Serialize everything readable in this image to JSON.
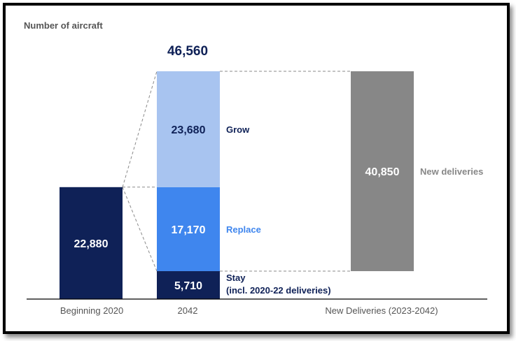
{
  "colors": {
    "navy": "#0f2157",
    "light_blue": "#a8c4f0",
    "mid_blue": "#3f86ee",
    "gray": "#878787",
    "axis": "#000000",
    "connector": "#8a8a8a"
  },
  "chart_data": {
    "type": "bar",
    "stacked": true,
    "title": "Number of aircraft",
    "xlabel": "",
    "ylabel": "",
    "grid": false,
    "legend": "none",
    "ylim": [
      0,
      46560
    ],
    "categories": [
      "Beginning 2020",
      "2042",
      "New Deliveries (2023-2042)"
    ],
    "total_label": "46,560",
    "series": [
      {
        "name": "",
        "category": "Beginning 2020",
        "value": 22880,
        "value_label": "22,880",
        "label": "",
        "color": "#0f2157",
        "label_color": "#ffffff"
      },
      {
        "name": "Stay",
        "category": "2042",
        "value": 5710,
        "value_label": "5,710",
        "label": "Stay",
        "label_line2": "(incl. 2020-22 deliveries)",
        "color": "#0f2157",
        "label_color": "#ffffff",
        "side_label_color": "#0f2157"
      },
      {
        "name": "Replace",
        "category": "2042",
        "value": 17170,
        "value_label": "17,170",
        "label": "Replace",
        "color": "#3f86ee",
        "label_color": "#ffffff",
        "side_label_color": "#3f86ee"
      },
      {
        "name": "Grow",
        "category": "2042",
        "value": 23680,
        "value_label": "23,680",
        "label": "Grow",
        "color": "#a8c4f0",
        "label_color": "#0f2157",
        "side_label_color": "#0f2157"
      },
      {
        "name": "New deliveries",
        "category": "New Deliveries (2023-2042)",
        "value": 40850,
        "value_label": "40,850",
        "label": "New deliveries",
        "color": "#878787",
        "label_color": "#ffffff",
        "side_label_color": "#878787"
      }
    ]
  }
}
